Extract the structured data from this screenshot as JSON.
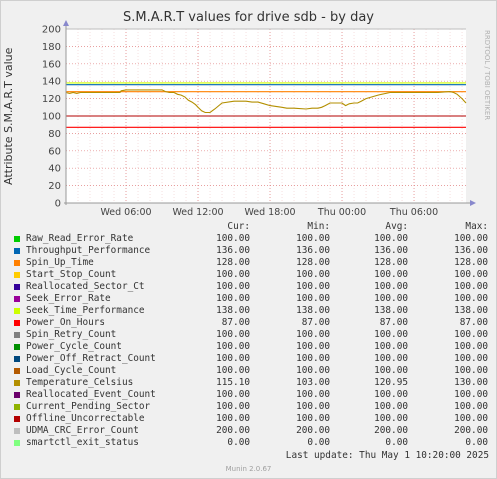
{
  "title": "S.M.A.R.T values for drive sdb - by day",
  "ylabel": "Attribute S.M.A.R.T value",
  "watermark": "RRDTOOL / TOBI OETIKER",
  "footer": "Munin 2.0.67",
  "last_update": "Last update: Thu May  1 10:20:00 2025",
  "legend_headers": {
    "cur": "Cur:",
    "min": "Min:",
    "avg": "Avg:",
    "max": "Max:"
  },
  "legend": [
    {
      "name": "Raw_Read_Error_Rate",
      "color": "#00cc00",
      "cur": "100.00",
      "min": "100.00",
      "avg": "100.00",
      "max": "100.00"
    },
    {
      "name": "Throughput_Performance",
      "color": "#0066b3",
      "cur": "136.00",
      "min": "136.00",
      "avg": "136.00",
      "max": "136.00"
    },
    {
      "name": "Spin_Up_Time",
      "color": "#ff8000",
      "cur": "128.00",
      "min": "128.00",
      "avg": "128.00",
      "max": "128.00"
    },
    {
      "name": "Start_Stop_Count",
      "color": "#ffcc00",
      "cur": "100.00",
      "min": "100.00",
      "avg": "100.00",
      "max": "100.00"
    },
    {
      "name": "Reallocated_Sector_Ct",
      "color": "#330099",
      "cur": "100.00",
      "min": "100.00",
      "avg": "100.00",
      "max": "100.00"
    },
    {
      "name": "Seek_Error_Rate",
      "color": "#990099",
      "cur": "100.00",
      "min": "100.00",
      "avg": "100.00",
      "max": "100.00"
    },
    {
      "name": "Seek_Time_Performance",
      "color": "#ccff00",
      "cur": "138.00",
      "min": "138.00",
      "avg": "138.00",
      "max": "138.00"
    },
    {
      "name": "Power_On_Hours",
      "color": "#ff0000",
      "cur": "87.00",
      "min": "87.00",
      "avg": "87.00",
      "max": "87.00"
    },
    {
      "name": "Spin_Retry_Count",
      "color": "#808080",
      "cur": "100.00",
      "min": "100.00",
      "avg": "100.00",
      "max": "100.00"
    },
    {
      "name": "Power_Cycle_Count",
      "color": "#008f00",
      "cur": "100.00",
      "min": "100.00",
      "avg": "100.00",
      "max": "100.00"
    },
    {
      "name": "Power_Off_Retract_Count",
      "color": "#00487d",
      "cur": "100.00",
      "min": "100.00",
      "avg": "100.00",
      "max": "100.00"
    },
    {
      "name": "Load_Cycle_Count",
      "color": "#b35a00",
      "cur": "100.00",
      "min": "100.00",
      "avg": "100.00",
      "max": "100.00"
    },
    {
      "name": "Temperature_Celsius",
      "color": "#b38f00",
      "cur": "115.10",
      "min": "103.00",
      "avg": "120.95",
      "max": "130.00"
    },
    {
      "name": "Reallocated_Event_Count",
      "color": "#6b006b",
      "cur": "100.00",
      "min": "100.00",
      "avg": "100.00",
      "max": "100.00"
    },
    {
      "name": "Current_Pending_Sector",
      "color": "#8fb300",
      "cur": "100.00",
      "min": "100.00",
      "avg": "100.00",
      "max": "100.00"
    },
    {
      "name": "Offline_Uncorrectable",
      "color": "#b30000",
      "cur": "100.00",
      "min": "100.00",
      "avg": "100.00",
      "max": "100.00"
    },
    {
      "name": "UDMA_CRC_Error_Count",
      "color": "#bebebe",
      "cur": "200.00",
      "min": "200.00",
      "avg": "200.00",
      "max": "200.00"
    },
    {
      "name": "smartctl_exit_status",
      "color": "#80ff80",
      "cur": "0.00",
      "min": "0.00",
      "avg": "0.00",
      "max": "0.00"
    }
  ],
  "chart_data": {
    "type": "line",
    "title": "S.M.A.R.T values for drive sdb - by day",
    "ylabel": "Attribute S.M.A.R.T value",
    "ylim": [
      0,
      200
    ],
    "y_ticks": [
      0,
      20,
      40,
      60,
      80,
      100,
      120,
      140,
      160,
      180,
      200
    ],
    "x_tick_labels": [
      "Wed 06:00",
      "Wed 12:00",
      "Wed 18:00",
      "Thu 00:00",
      "Thu 06:00"
    ],
    "x_range_hours": [
      0,
      33.33
    ],
    "x_tick_hours": [
      5,
      11,
      17,
      23,
      29
    ],
    "grid": true,
    "series": [
      {
        "name": "Power_On_Hours",
        "color": "#ff0000",
        "constant": 87
      },
      {
        "name": "Offline_Uncorrectable",
        "color": "#b30000",
        "constant": 100
      },
      {
        "name": "Spin_Up_Time",
        "color": "#ff8000",
        "constant": 128
      },
      {
        "name": "Throughput_Performance",
        "color": "#0066b3",
        "constant": 136
      },
      {
        "name": "Seek_Time_Performance",
        "color": "#ccff00",
        "constant": 138
      },
      {
        "name": "UDMA_CRC_Error_Count",
        "color": "#bebebe",
        "constant": 200
      },
      {
        "name": "smartctl_exit_status",
        "color": "#80ff80",
        "constant": 0
      },
      {
        "name": "Temperature_Celsius",
        "color": "#b38f00",
        "x": [
          0,
          0.3,
          0.6,
          0.9,
          1.2,
          2,
          3,
          4,
          4.5,
          4.6,
          5,
          6,
          7,
          8,
          8.3,
          8.6,
          9,
          9.3,
          9.6,
          9.9,
          10.2,
          10.5,
          10.8,
          11,
          11.3,
          11.6,
          12,
          12.4,
          13,
          14,
          15,
          15.5,
          16,
          16.5,
          17,
          18,
          18.4,
          19,
          20,
          20.5,
          21,
          21.3,
          21.6,
          22,
          23,
          23.3,
          23.6,
          24,
          24.3,
          24.6,
          25,
          26,
          27,
          28,
          29,
          29.3,
          29.6,
          30,
          31,
          32,
          32.3,
          32.6,
          33,
          33.33
        ],
        "values": [
          127,
          126,
          127,
          126,
          127,
          127,
          127,
          127,
          127,
          129,
          130,
          130,
          130,
          130,
          128,
          127,
          127,
          125,
          124,
          122,
          118,
          116,
          113,
          110,
          106,
          104,
          104,
          108,
          115,
          117,
          117,
          116,
          116,
          114,
          112,
          110,
          109,
          109,
          108,
          109,
          109,
          110,
          112,
          115,
          115,
          112,
          114,
          115,
          115,
          117,
          120,
          124,
          127,
          127,
          127,
          127,
          127,
          127,
          127,
          128,
          127,
          125,
          120,
          115
        ]
      }
    ]
  }
}
